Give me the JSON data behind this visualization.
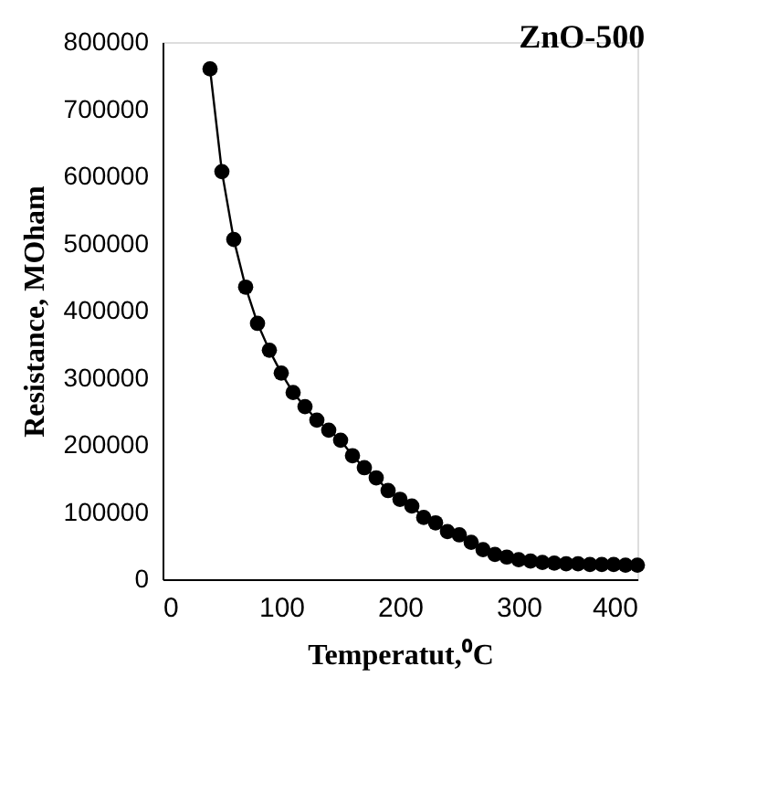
{
  "chart_data": {
    "type": "line",
    "title": "ZnO-500",
    "xlabel": "Temperatut,⁰C",
    "ylabel": "Resistance, MOham",
    "x": [
      40,
      50,
      60,
      70,
      80,
      90,
      100,
      110,
      120,
      130,
      140,
      150,
      160,
      170,
      180,
      190,
      200,
      210,
      220,
      230,
      240,
      250,
      260,
      270,
      280,
      290,
      300,
      310,
      320,
      330,
      340,
      350,
      360,
      370,
      380,
      390,
      400
    ],
    "series": [
      {
        "color": "#000000",
        "values": [
          760000,
          607000,
          506000,
          435000,
          381000,
          341000,
          307000,
          278000,
          257000,
          237000,
          222000,
          207000,
          184000,
          166000,
          151000,
          132000,
          119000,
          109000,
          92000,
          84000,
          71000,
          66000,
          55000,
          44000,
          37000,
          33000,
          29000,
          27000,
          25000,
          24000,
          23000,
          23000,
          22000,
          22000,
          22000,
          21000,
          21000
        ]
      }
    ],
    "xlim": [
      0,
      400
    ],
    "xticks": [
      0,
      100,
      200,
      300,
      400
    ],
    "ylim": [
      0,
      800000
    ],
    "yticks": [
      0,
      100000,
      200000,
      300000,
      400000,
      500000,
      600000,
      700000,
      800000
    ],
    "marker": "circle",
    "line_style": "solid",
    "grid": false,
    "legend": false
  }
}
